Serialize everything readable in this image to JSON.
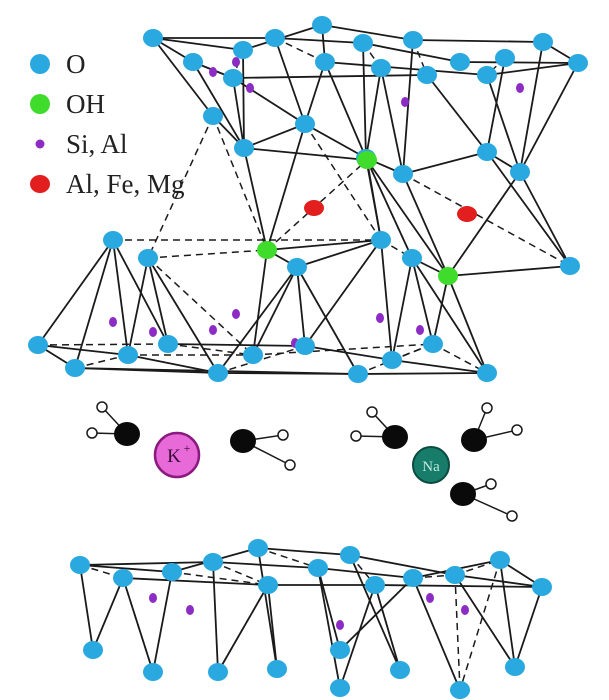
{
  "legend": {
    "items": [
      {
        "label": "O",
        "color": "#2aa9e0"
      },
      {
        "label": "OH",
        "color": "#3fdc2c"
      },
      {
        "label": "Si, Al",
        "color": "#8c2cc4"
      },
      {
        "label": "Al, Fe, Mg",
        "color": "#e31e1e"
      }
    ]
  },
  "ions": {
    "potassium": {
      "label": "K",
      "charge": "+",
      "color": "#e86ad8"
    },
    "sodium": {
      "label": "Na",
      "color": "#177d6a"
    }
  },
  "colors": {
    "line": "#1a1a1a",
    "water_oxygen": "#0a0a0a",
    "water_hydrogen": "#ffffff"
  }
}
